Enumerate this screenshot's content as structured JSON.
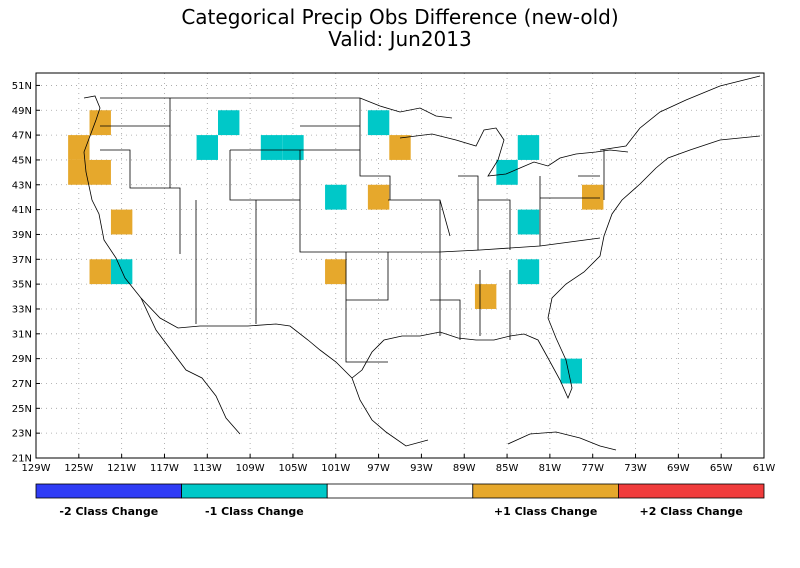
{
  "title": {
    "line1": "Categorical Precip Obs Difference (new-old)",
    "line2": "Valid: Jun2013"
  },
  "axes": {
    "lat_labels": [
      "51N",
      "49N",
      "47N",
      "45N",
      "43N",
      "41N",
      "39N",
      "37N",
      "35N",
      "33N",
      "31N",
      "29N",
      "27N",
      "25N",
      "23N",
      "21N"
    ],
    "lat_values": [
      51,
      49,
      47,
      45,
      43,
      41,
      39,
      37,
      35,
      33,
      31,
      29,
      27,
      25,
      23,
      21
    ],
    "lon_labels": [
      "129W",
      "125W",
      "121W",
      "117W",
      "113W",
      "109W",
      "105W",
      "101W",
      "97W",
      "93W",
      "89W",
      "85W",
      "81W",
      "77W",
      "73W",
      "69W",
      "65W",
      "61W"
    ],
    "lon_values": [
      -129,
      -125,
      -121,
      -117,
      -113,
      -109,
      -105,
      -101,
      -97,
      -93,
      -89,
      -85,
      -81,
      -77,
      -73,
      -69,
      -65,
      -61
    ],
    "lon_range": [
      -129,
      -61
    ],
    "lat_range": [
      21,
      52
    ],
    "grid": true
  },
  "colors": {
    "minus2": "#2f3cf5",
    "minus1": "#00c8c8",
    "zero": "#ffffff",
    "plus1": "#e6a82c",
    "plus2": "#f03c3c",
    "grid": "#a0a0a0",
    "boundary": "#000000"
  },
  "legend": {
    "items": [
      {
        "label": "-2 Class Change",
        "color_key": "minus2"
      },
      {
        "label": "-1 Class Change",
        "color_key": "minus1"
      },
      {
        "label": "",
        "color_key": "zero"
      },
      {
        "label": "+1 Class Change",
        "color_key": "plus1"
      },
      {
        "label": "+2 Class Change",
        "color_key": "plus2"
      }
    ]
  },
  "chart_data": {
    "type": "heatmap",
    "cell_size_deg": 2,
    "cells": [
      {
        "lon": -123,
        "lat": 48,
        "value": 1
      },
      {
        "lon": -125,
        "lat": 46,
        "value": 1
      },
      {
        "lon": -125,
        "lat": 44,
        "value": 1
      },
      {
        "lon": -123,
        "lat": 44,
        "value": 1
      },
      {
        "lon": -121,
        "lat": 40,
        "value": 1
      },
      {
        "lon": -123,
        "lat": 36,
        "value": 1
      },
      {
        "lon": -121,
        "lat": 36,
        "value": -1
      },
      {
        "lon": -111,
        "lat": 48,
        "value": -1
      },
      {
        "lon": -113,
        "lat": 46,
        "value": -1
      },
      {
        "lon": -107,
        "lat": 46,
        "value": -1
      },
      {
        "lon": -105,
        "lat": 46,
        "value": -1
      },
      {
        "lon": -101,
        "lat": 42,
        "value": -1
      },
      {
        "lon": -101,
        "lat": 36,
        "value": 1
      },
      {
        "lon": -97,
        "lat": 48,
        "value": -1
      },
      {
        "lon": -95,
        "lat": 46,
        "value": 1
      },
      {
        "lon": -97,
        "lat": 42,
        "value": 1
      },
      {
        "lon": -87,
        "lat": 34,
        "value": 1
      },
      {
        "lon": -83,
        "lat": 46,
        "value": -1
      },
      {
        "lon": -85,
        "lat": 44,
        "value": -1
      },
      {
        "lon": -83,
        "lat": 40,
        "value": -1
      },
      {
        "lon": -83,
        "lat": 36,
        "value": -1
      },
      {
        "lon": -77,
        "lat": 42,
        "value": 1
      },
      {
        "lon": -79,
        "lat": 28,
        "value": -1
      }
    ]
  }
}
